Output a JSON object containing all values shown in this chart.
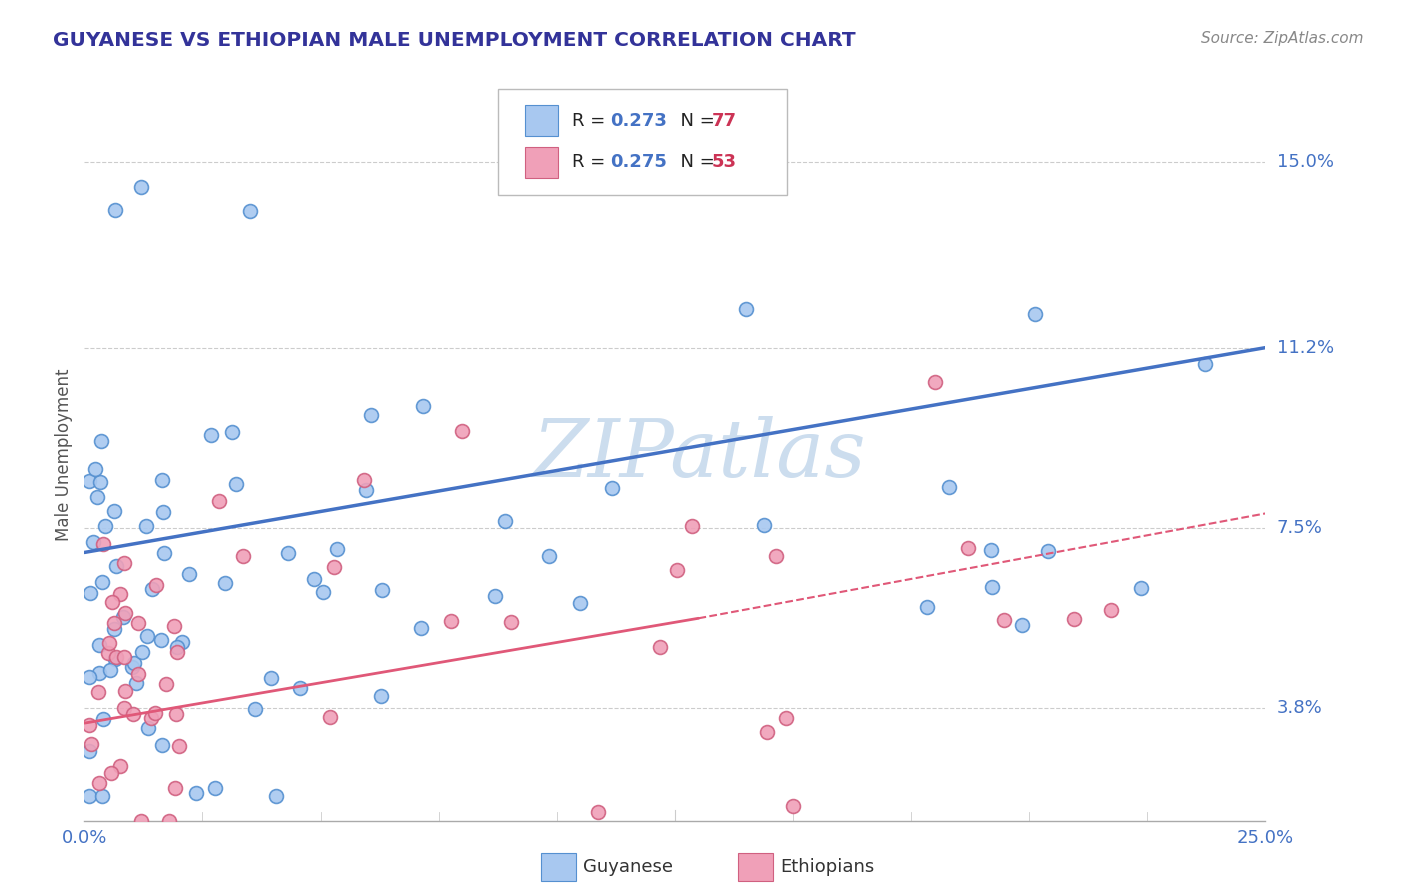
{
  "title": "GUYANESE VS ETHIOPIAN MALE UNEMPLOYMENT CORRELATION CHART",
  "source_text": "Source: ZipAtlas.com",
  "ylabel": "Male Unemployment",
  "xlim": [
    0.0,
    25.0
  ],
  "ylim": [
    1.5,
    16.5
  ],
  "ytick_positions": [
    3.8,
    7.5,
    11.2,
    15.0
  ],
  "ytick_labels": [
    "3.8%",
    "7.5%",
    "11.2%",
    "15.0%"
  ],
  "guyanese_R": "0.273",
  "guyanese_N": "77",
  "ethiopian_R": "0.275",
  "ethiopian_N": "53",
  "blue_fill": "#A8C8F0",
  "blue_edge": "#5590D0",
  "pink_fill": "#F0A0B8",
  "pink_edge": "#D06080",
  "blue_line_color": "#4472C4",
  "pink_line_color": "#E05878",
  "text_blue": "#4472C4",
  "text_red": "#CC3355",
  "title_color": "#333399",
  "source_color": "#888888",
  "watermark_color": "#CCDDEE",
  "grid_color": "#CCCCCC",
  "axis_color": "#AAAAAA",
  "tick_label_color": "#4472C4",
  "blue_line_y0": 7.0,
  "blue_line_y1": 11.2,
  "pink_line_y0": 3.5,
  "pink_line_y1": 7.8,
  "pink_solid_end_x": 13.0,
  "pink_solid_end_y": 5.65
}
